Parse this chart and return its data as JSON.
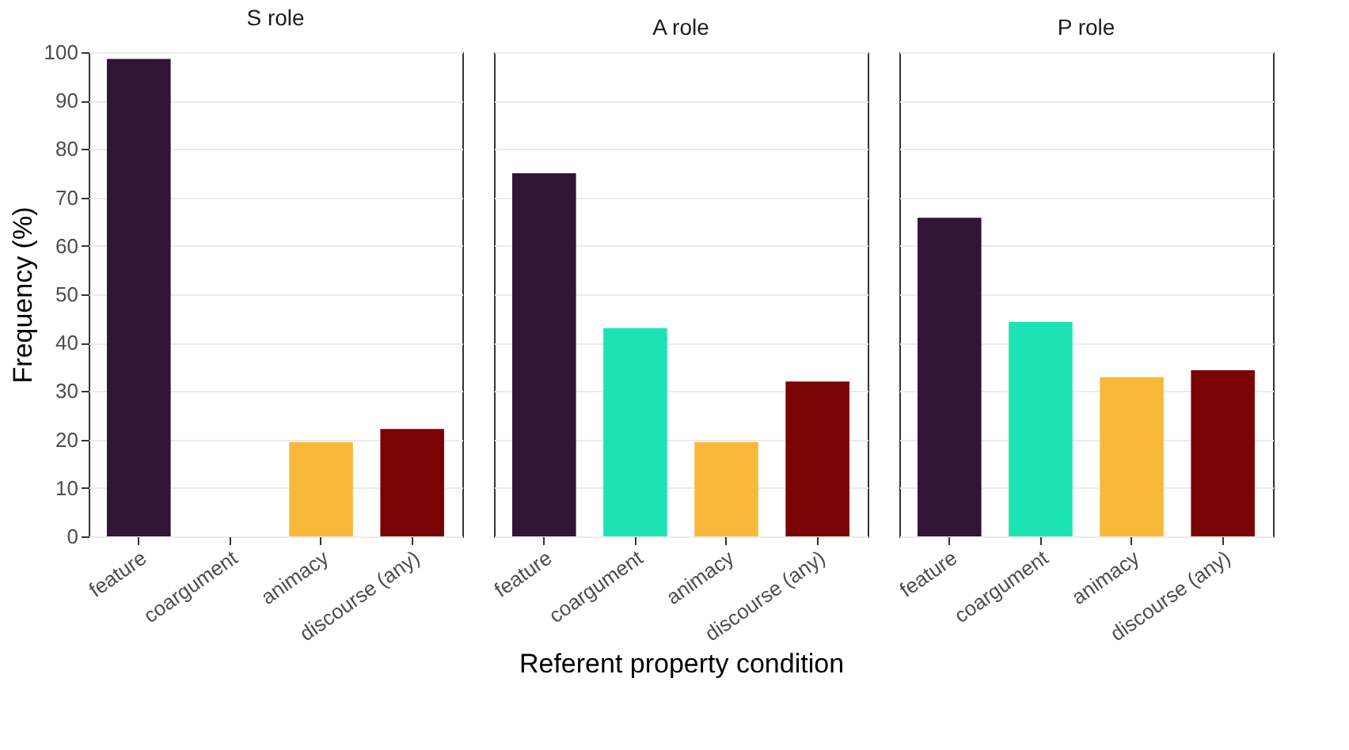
{
  "chart_data": [
    {
      "type": "bar",
      "title": "S role",
      "ylabel": "Frequency (%)",
      "categories": [
        "feature",
        "coargument",
        "animacy",
        "discourse (any)"
      ],
      "values": [
        98.6,
        0,
        19.5,
        22.2
      ],
      "colors": [
        "#321437",
        "#1de3b4",
        "#f8b93a",
        "#7a0403"
      ],
      "ylim": [
        0,
        100
      ],
      "yticks": [
        0,
        10,
        20,
        30,
        40,
        50,
        60,
        70,
        80,
        90,
        100
      ],
      "grid": "y"
    },
    {
      "type": "bar",
      "title": "A role",
      "xlabel": "Referent property condition",
      "categories": [
        "feature",
        "coargument",
        "animacy",
        "discourse (any)"
      ],
      "values": [
        75,
        43,
        19.5,
        32
      ],
      "colors": [
        "#321437",
        "#1de3b4",
        "#f8b93a",
        "#7a0403"
      ],
      "ylim": [
        0,
        100
      ],
      "yticks": [
        0,
        10,
        20,
        30,
        40,
        50,
        60,
        70,
        80,
        90,
        100
      ],
      "grid": "y",
      "tick_labels": "x"
    },
    {
      "type": "bar",
      "title": "P role",
      "categories": [
        "feature",
        "coargument",
        "animacy",
        "discourse (any)"
      ],
      "values": [
        65.8,
        44.3,
        32.9,
        34.3
      ],
      "colors": [
        "#321437",
        "#1de3b4",
        "#f8b93a",
        "#7a0403"
      ],
      "ylim": [
        0,
        100
      ],
      "yticks": [
        0,
        10,
        20,
        30,
        40,
        50,
        60,
        70,
        80,
        90,
        100
      ],
      "grid": "y",
      "tick_labels": "x"
    }
  ]
}
